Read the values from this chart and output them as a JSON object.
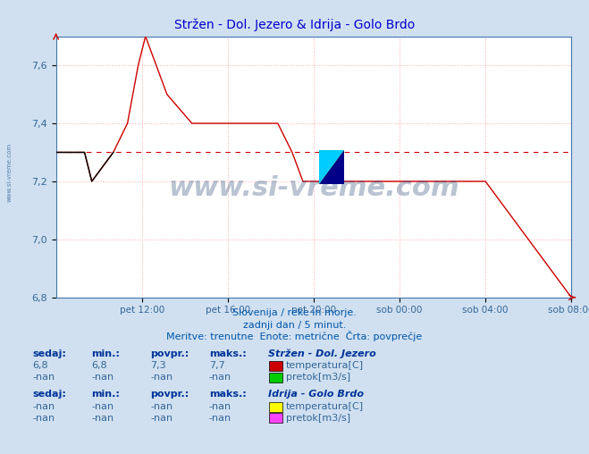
{
  "title": "Stržen - Dol. Jezero & Idrija - Golo Brdo",
  "title_color": "#0000cc",
  "bg_color": "#d0e0f0",
  "plot_bg_color": "#ffffff",
  "grid_color": "#ffaaaa",
  "xlim_hours": [
    8,
    32
  ],
  "ylim": [
    6.8,
    7.7
  ],
  "yticks": [
    6.8,
    7.0,
    7.2,
    7.4,
    7.6
  ],
  "xtick_labels": [
    "pet 12:00",
    "pet 16:00",
    "pet 20:00",
    "sob 00:00",
    "sob 04:00",
    "sob 08:00"
  ],
  "xtick_hours": [
    12,
    16,
    20,
    24,
    28,
    32
  ],
  "line_color": "#cc0000",
  "black_line_color": "#000000",
  "avg_value": 7.3,
  "watermark": "www.si-vreme.com",
  "watermark_color": "#1a3a6a",
  "subtitle1": "Slovenija / reke in morje.",
  "subtitle2": "zadnji dan / 5 minut.",
  "subtitle3": "Meritve: trenutne  Enote: metrične  Črta: povprečje",
  "subtitle_color": "#0055aa",
  "legend_title1": "Stržen - Dol. Jezero",
  "legend_title2": "Idrija - Golo Brdo",
  "label_color": "#336699",
  "stats_header_color": "#003399",
  "temperature_color1": "#cc0000",
  "pretok_color1": "#00cc00",
  "temperature_color2": "#ffff00",
  "pretok_color2": "#ff44ff",
  "temp_segments": [
    {
      "x_start": 8.0,
      "x_end": 9.33,
      "y": 7.3
    },
    {
      "x_start": 9.33,
      "x_end": 9.67,
      "y": 7.2
    },
    {
      "x_start": 9.67,
      "x_end": 10.67,
      "y": 7.3
    },
    {
      "x_start": 10.67,
      "x_end": 11.33,
      "y": 7.4
    },
    {
      "x_start": 11.33,
      "x_end": 11.83,
      "y": 7.6
    },
    {
      "x_start": 11.83,
      "x_end": 12.17,
      "y": 7.7
    },
    {
      "x_start": 12.17,
      "x_end": 12.67,
      "y": 7.6
    },
    {
      "x_start": 12.67,
      "x_end": 13.17,
      "y": 7.5
    },
    {
      "x_start": 13.17,
      "x_end": 14.33,
      "y": 7.4
    },
    {
      "x_start": 14.33,
      "x_end": 18.33,
      "y": 7.4
    },
    {
      "x_start": 18.33,
      "x_end": 19.0,
      "y": 7.3
    },
    {
      "x_start": 19.0,
      "x_end": 19.5,
      "y": 7.2
    },
    {
      "x_start": 19.5,
      "x_end": 27.5,
      "y": 7.2
    },
    {
      "x_start": 27.5,
      "x_end": 28.0,
      "y": 7.2
    },
    {
      "x_start": 28.0,
      "x_end": 30.0,
      "y": 7.0
    },
    {
      "x_start": 30.0,
      "x_end": 31.0,
      "y": 6.9
    },
    {
      "x_start": 31.0,
      "x_end": 32.0,
      "y": 6.8
    }
  ],
  "black_segments": [
    {
      "x_start": 8.0,
      "x_end": 9.33,
      "y": 7.3
    },
    {
      "x_start": 9.33,
      "x_end": 9.67,
      "y": 7.2
    },
    {
      "x_start": 9.67,
      "x_end": 10.67,
      "y": 7.3
    }
  ]
}
